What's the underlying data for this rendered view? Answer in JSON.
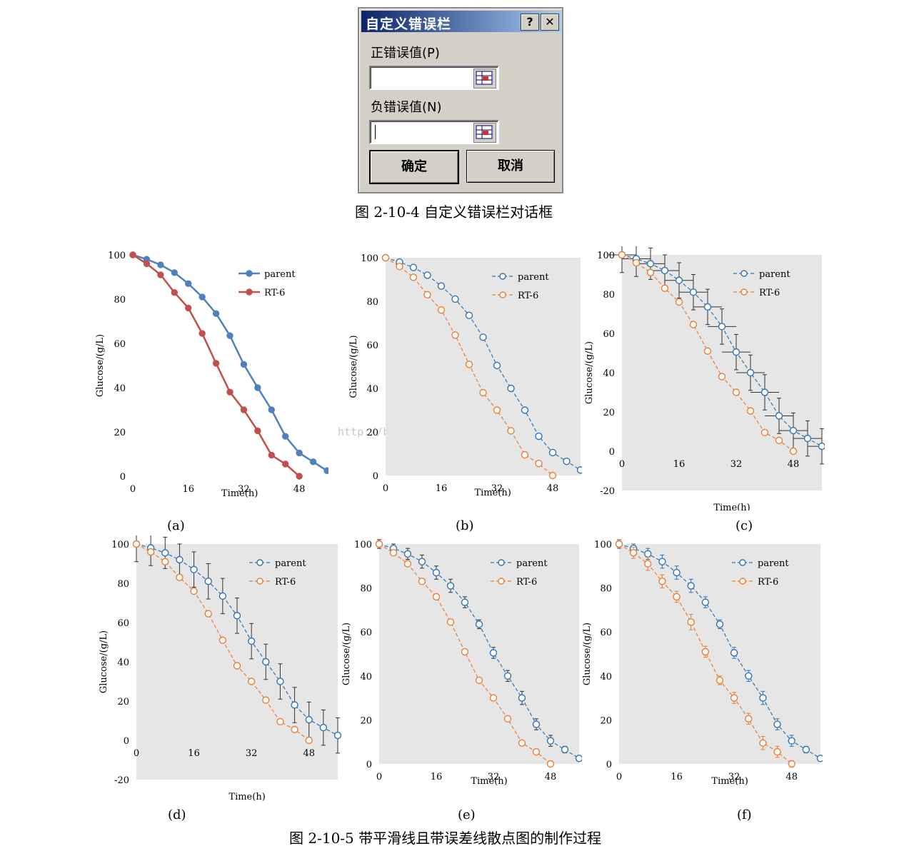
{
  "dialog": {
    "title": "自定义错误栏",
    "help_label": "?",
    "close_label": "✕",
    "positive_label": "正错误值(P)",
    "negative_label": "负错误值(N)",
    "positive_value": "",
    "negative_value": "",
    "ok_label": "确定",
    "cancel_label": "取消"
  },
  "captions": {
    "fig4": "图 2-10-4 自定义错误栏对话框",
    "fig5": "图 2-10-5 带平滑线且带误差线散点图的制作过程"
  },
  "watermark": "http://blog.csdn.net/Peter_Zhang_jie",
  "colors": {
    "parent_solid": "#4f81bd",
    "rt6_solid": "#c0504d",
    "parent": "#2e75b6",
    "rt6": "#ed7d31",
    "plot_bg": "#e6e6e6"
  },
  "chart_data": [
    {
      "label": "(a)",
      "type": "line",
      "style": "solid-filled",
      "x": [
        0,
        4,
        8,
        12,
        16,
        20,
        24,
        28,
        32,
        36,
        40,
        44,
        48,
        52,
        56
      ],
      "series": [
        {
          "name": "parent",
          "values": [
            100,
            98,
            95.5,
            92,
            87,
            81,
            73.5,
            63.5,
            50.5,
            40,
            30,
            18,
            10.5,
            6.5,
            2.5
          ]
        },
        {
          "name": "RT-6",
          "values": [
            100,
            96,
            91,
            83,
            76,
            64.5,
            51,
            38,
            30,
            20.5,
            9.5,
            5.5,
            0,
            null,
            null
          ]
        }
      ],
      "xticks": [
        "0",
        "16",
        "32",
        "48"
      ],
      "yticks": [
        "0",
        "20",
        "40",
        "60",
        "80",
        "100"
      ],
      "xlabel": "Time(h)",
      "ylabel": "Glucose/(g/L)",
      "ylim": [
        0,
        100
      ],
      "legend": "top-right"
    },
    {
      "label": "(b)",
      "type": "line",
      "style": "dashed-hollow",
      "x": [
        0,
        4,
        8,
        12,
        16,
        20,
        24,
        28,
        32,
        36,
        40,
        44,
        48,
        52,
        56
      ],
      "series": [
        {
          "name": "parent",
          "values": [
            100,
            98,
            95.5,
            92,
            87,
            81,
            73.5,
            63.5,
            50.5,
            40,
            30,
            18,
            10.5,
            6.5,
            2.5
          ]
        },
        {
          "name": "RT-6",
          "values": [
            100,
            96,
            91,
            83,
            76,
            64.5,
            51,
            38,
            30,
            20.5,
            9.5,
            5.5,
            0,
            null,
            null
          ]
        }
      ],
      "xticks": [
        "0",
        "16",
        "32",
        "48"
      ],
      "yticks": [
        "0",
        "20",
        "40",
        "60",
        "80",
        "100"
      ],
      "xlabel": "Time(h)",
      "ylabel": "Glucose/(g/L)",
      "ylim": [
        0,
        100
      ],
      "legend": "top-right"
    },
    {
      "label": "(c)",
      "type": "scatter",
      "style": "dashed-hollow-xy-error",
      "x": [
        0,
        4,
        8,
        12,
        16,
        20,
        24,
        28,
        32,
        36,
        40,
        44,
        48,
        52,
        56
      ],
      "series": [
        {
          "name": "parent",
          "values": [
            100,
            98,
            95.5,
            92,
            87,
            81,
            73.5,
            63.5,
            50.5,
            40,
            30,
            18,
            10.5,
            6.5,
            2.5
          ],
          "yerr": [
            9,
            9,
            8,
            8,
            9,
            9,
            9,
            9,
            9,
            9,
            9,
            9,
            9,
            9,
            9
          ],
          "xerr": 4
        },
        {
          "name": "RT-6",
          "values": [
            100,
            96,
            91,
            83,
            76,
            64.5,
            51,
            38,
            30,
            20.5,
            9.5,
            5.5,
            0,
            null,
            null
          ]
        }
      ],
      "xticks": [
        "0",
        "16",
        "32",
        "48"
      ],
      "yticks": [
        "-20",
        "0",
        "20",
        "40",
        "60",
        "80",
        "100"
      ],
      "xlabel": "Time(h)",
      "ylabel": "Glucose/(g/L)",
      "ylim": [
        -20,
        100
      ],
      "legend": "top-right"
    },
    {
      "label": "(d)",
      "type": "scatter",
      "style": "dashed-hollow-y-error",
      "x": [
        0,
        4,
        8,
        12,
        16,
        20,
        24,
        28,
        32,
        36,
        40,
        44,
        48,
        52,
        56
      ],
      "series": [
        {
          "name": "parent",
          "values": [
            100,
            98,
            95.5,
            92,
            87,
            81,
            73.5,
            63.5,
            50.5,
            40,
            30,
            18,
            10.5,
            6.5,
            2.5
          ],
          "yerr": [
            9,
            9,
            8,
            8,
            9,
            9,
            9,
            9,
            9,
            9,
            9,
            9,
            9,
            9,
            9
          ]
        },
        {
          "name": "RT-6",
          "values": [
            100,
            96,
            91,
            83,
            76,
            64.5,
            51,
            38,
            30,
            20.5,
            9.5,
            5.5,
            0,
            null,
            null
          ]
        }
      ],
      "xticks": [
        "0",
        "16",
        "32",
        "48"
      ],
      "yticks": [
        "-20",
        "0",
        "20",
        "40",
        "60",
        "80",
        "100"
      ],
      "xlabel": "Time(h)",
      "ylabel": "Glucose/(g/L)",
      "ylim": [
        -20,
        100
      ],
      "legend": "top-right"
    },
    {
      "label": "(e)",
      "type": "scatter",
      "style": "dashed-hollow-small-error",
      "x": [
        0,
        4,
        8,
        12,
        16,
        20,
        24,
        28,
        32,
        36,
        40,
        44,
        48,
        52,
        56
      ],
      "series": [
        {
          "name": "parent",
          "values": [
            100,
            98,
            95.5,
            92,
            87,
            81,
            73.5,
            63.5,
            50.5,
            40,
            30,
            18,
            10.5,
            6.5,
            2.5
          ],
          "yerr": [
            2,
            2,
            2.5,
            3,
            3,
            3,
            2.5,
            2,
            2.5,
            2.5,
            3,
            2.5,
            2.5,
            1.5,
            1
          ]
        },
        {
          "name": "RT-6",
          "values": [
            100,
            96,
            91,
            83,
            76,
            64.5,
            51,
            38,
            30,
            20.5,
            9.5,
            5.5,
            0,
            null,
            null
          ]
        }
      ],
      "xticks": [
        "0",
        "16",
        "32",
        "48"
      ],
      "yticks": [
        "0",
        "20",
        "40",
        "60",
        "80",
        "100"
      ],
      "xlabel": "Time(h)",
      "ylabel": "Glucose/(g/L)",
      "ylim": [
        0,
        100
      ],
      "legend": "top-right"
    },
    {
      "label": "(f)",
      "type": "scatter",
      "style": "dashed-hollow-small-error-both",
      "x": [
        0,
        4,
        8,
        12,
        16,
        20,
        24,
        28,
        32,
        36,
        40,
        44,
        48,
        52,
        56
      ],
      "series": [
        {
          "name": "parent",
          "values": [
            100,
            98,
            95.5,
            92,
            87,
            81,
            73.5,
            63.5,
            50.5,
            40,
            30,
            18,
            10.5,
            6.5,
            2.5
          ],
          "yerr": [
            2,
            2,
            2.5,
            3,
            3,
            3,
            2.5,
            2,
            2.5,
            2.5,
            3,
            2.5,
            2.5,
            1.5,
            1
          ]
        },
        {
          "name": "RT-6",
          "values": [
            100,
            96,
            91,
            83,
            76,
            64.5,
            51,
            38,
            30,
            20.5,
            9.5,
            5.5,
            0,
            null,
            null
          ],
          "yerr": [
            1.5,
            2.5,
            3,
            3,
            2.5,
            3.5,
            2.5,
            2,
            2.5,
            2.5,
            3,
            2.5,
            1.5,
            null,
            null
          ]
        }
      ],
      "xticks": [
        "0",
        "16",
        "32",
        "48"
      ],
      "yticks": [
        "0",
        "20",
        "40",
        "60",
        "80",
        "100"
      ],
      "xlabel": "Time(h)",
      "ylabel": "Glucose/(g/L)",
      "ylim": [
        0,
        100
      ],
      "legend": "top-right"
    }
  ]
}
